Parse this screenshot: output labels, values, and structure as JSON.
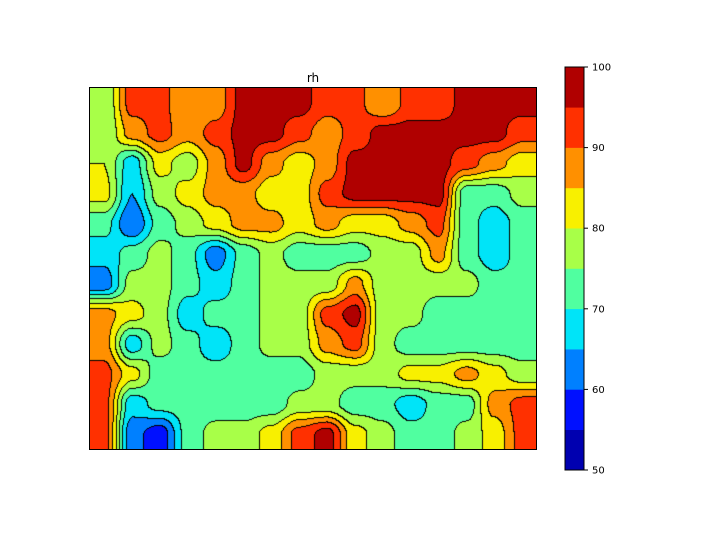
{
  "chart_data": {
    "type": "heatmap",
    "subtype": "filled-contour",
    "title": "rh",
    "levels": [
      50,
      55,
      60,
      65,
      70,
      75,
      80,
      85,
      90,
      95,
      100
    ],
    "colors": [
      "#0000b0",
      "#0010ff",
      "#0080ff",
      "#00e4f8",
      "#50ffa0",
      "#a8ff48",
      "#f8f000",
      "#ff9000",
      "#ff3000",
      "#b00000"
    ],
    "colorbar": {
      "ticks": [
        "50",
        "60",
        "70",
        "80",
        "90",
        "100"
      ],
      "placement": "right"
    },
    "contour_lines": true,
    "grid_rows_top_to_bottom": [
      [
        75,
        92,
        92,
        85,
        87,
        97,
        97,
        97,
        92,
        92,
        85,
        92,
        92,
        97,
        97,
        97
      ],
      [
        75,
        87,
        92,
        87,
        92,
        97,
        97,
        92,
        87,
        92,
        97,
        97,
        97,
        97,
        97,
        92
      ],
      [
        80,
        67,
        82,
        77,
        87,
        97,
        87,
        82,
        87,
        97,
        97,
        97,
        97,
        92,
        87,
        82
      ],
      [
        82,
        65,
        77,
        82,
        87,
        87,
        82,
        82,
        92,
        97,
        97,
        97,
        97,
        72,
        72,
        77
      ],
      [
        72,
        60,
        72,
        77,
        82,
        87,
        87,
        82,
        87,
        82,
        82,
        87,
        92,
        72,
        67,
        72
      ],
      [
        67,
        72,
        77,
        72,
        62,
        72,
        77,
        72,
        72,
        72,
        77,
        77,
        87,
        72,
        67,
        72
      ],
      [
        62,
        77,
        77,
        72,
        67,
        72,
        77,
        77,
        77,
        87,
        77,
        77,
        77,
        77,
        72,
        72
      ],
      [
        87,
        82,
        77,
        67,
        72,
        72,
        77,
        77,
        92,
        97,
        77,
        77,
        72,
        72,
        72,
        72
      ],
      [
        87,
        67,
        77,
        72,
        67,
        72,
        77,
        77,
        87,
        92,
        77,
        72,
        72,
        72,
        72,
        72
      ],
      [
        92,
        82,
        72,
        72,
        72,
        72,
        72,
        72,
        77,
        77,
        77,
        82,
        82,
        87,
        82,
        77
      ],
      [
        92,
        67,
        72,
        72,
        72,
        72,
        72,
        77,
        77,
        72,
        72,
        67,
        72,
        72,
        87,
        92
      ],
      [
        92,
        62,
        57,
        72,
        77,
        77,
        82,
        92,
        97,
        82,
        77,
        72,
        72,
        77,
        82,
        92
      ]
    ]
  }
}
